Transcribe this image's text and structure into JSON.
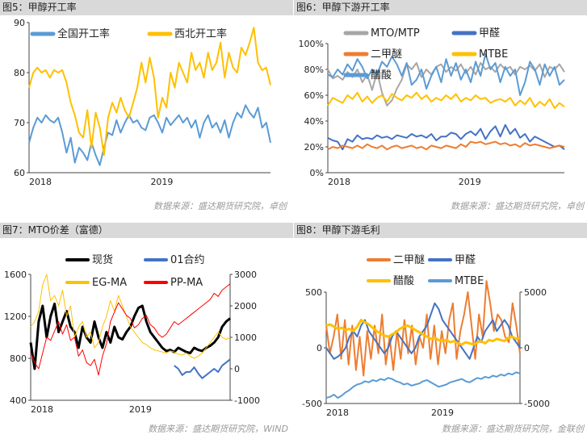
{
  "chart_data": [
    {
      "type": "line",
      "title": "图5：甲醇开工率",
      "source": "数据来源：盛达期货研究院，卓创",
      "x_ticks": [
        "2018",
        "2019"
      ],
      "ylim": [
        60,
        90
      ],
      "y_ticks": [
        60,
        70,
        80,
        90
      ],
      "colors": [
        "#5b9bd5",
        "#ffc000"
      ],
      "series": [
        {
          "name": "全国开工率",
          "values": [
            66.0,
            69.0,
            71.0,
            70.0,
            71.5,
            70.5,
            70.0,
            71.0,
            68.0,
            64.0,
            67.0,
            62.0,
            65.0,
            64.0,
            62.5,
            66.0,
            63.5,
            61.5,
            65.0,
            68.0,
            67.5,
            70.5,
            68.0,
            70.0,
            71.5,
            70.0,
            70.5,
            69.0,
            68.5,
            71.0,
            71.5,
            70.0,
            68.0,
            71.0,
            69.5,
            70.5,
            71.5,
            70.0,
            71.0,
            69.0,
            70.5,
            67.0,
            70.0,
            71.5,
            69.0,
            70.0,
            68.0,
            70.5,
            67.0,
            70.0,
            72.0,
            71.0,
            73.5,
            72.0,
            71.0,
            73.0,
            69.0,
            70.0,
            66.0
          ]
        },
        {
          "name": "西北开工率",
          "values": [
            77.0,
            80.0,
            81.0,
            80.0,
            80.5,
            79.0,
            80.5,
            80.0,
            80.5,
            78.0,
            74.0,
            71.5,
            68.0,
            67.0,
            72.5,
            65.0,
            72.0,
            69.0,
            63.5,
            71.0,
            74.0,
            72.0,
            75.0,
            72.5,
            71.0,
            74.0,
            77.0,
            82.0,
            78.0,
            83.0,
            79.0,
            71.0,
            75.0,
            73.0,
            80.0,
            77.0,
            82.0,
            80.0,
            78.0,
            84.0,
            80.5,
            82.0,
            79.0,
            84.0,
            80.5,
            82.0,
            86.0,
            79.0,
            84.0,
            81.0,
            80.0,
            85.0,
            83.5,
            86.0,
            89.0,
            82.0,
            80.5,
            81.0,
            77.5
          ]
        }
      ]
    },
    {
      "type": "line",
      "title": "图6：甲醇下游开工率",
      "source": "数据来源：盛达期货研究院，卓创",
      "x_ticks": [
        "2018",
        "2019"
      ],
      "ylim": [
        0,
        100
      ],
      "y_ticks": [
        "0%",
        "20%",
        "40%",
        "60%",
        "80%",
        "100%"
      ],
      "colors": [
        "#a6a6a6",
        "#4472c4",
        "#ed7d31",
        "#ffc000",
        "#5b9bd5"
      ],
      "series": [
        {
          "name": "MTO/MTP",
          "values": [
            80,
            73,
            75,
            72,
            78,
            74,
            80,
            70,
            76,
            64,
            78,
            62,
            52,
            56,
            65,
            72,
            84,
            80,
            85,
            74,
            80,
            76,
            82,
            84,
            78,
            82,
            79,
            84,
            77,
            82,
            76,
            85,
            80,
            82,
            78,
            84,
            80,
            82,
            76,
            82,
            80,
            83,
            79,
            84,
            74,
            82,
            80,
            84,
            78
          ]
        },
        {
          "name": "甲醛",
          "values": [
            27,
            25,
            24,
            18,
            26,
            24,
            29,
            26,
            27,
            26,
            29,
            27,
            28,
            26,
            29,
            28,
            27,
            30,
            28,
            29,
            27,
            30,
            25,
            28,
            28,
            31,
            30,
            26,
            30,
            32,
            29,
            34,
            26,
            32,
            36,
            28,
            37,
            30,
            34,
            27,
            30,
            24,
            28,
            26,
            24,
            22,
            20,
            21,
            18
          ]
        },
        {
          "name": "二甲醚",
          "values": [
            18,
            20,
            19,
            21,
            20,
            19,
            21,
            19,
            22,
            20,
            19,
            21,
            18,
            20,
            21,
            19,
            20,
            21,
            19,
            20,
            18,
            21,
            20,
            19,
            21,
            20,
            19,
            22,
            20,
            24,
            23,
            24,
            22,
            23,
            24,
            22,
            23,
            21,
            22,
            20,
            23,
            21,
            22,
            21,
            20,
            19,
            20,
            21,
            20
          ]
        },
        {
          "name": "MTBE",
          "values": [
            52,
            58,
            56,
            54,
            60,
            57,
            62,
            55,
            59,
            54,
            58,
            60,
            55,
            61,
            58,
            56,
            60,
            58,
            62,
            57,
            60,
            55,
            58,
            56,
            60,
            57,
            61,
            55,
            58,
            56,
            60,
            57,
            58,
            54,
            56,
            57,
            55,
            58,
            52,
            56,
            53,
            58,
            51,
            55,
            52,
            57,
            50,
            54,
            51
          ]
        },
        {
          "name": "醋酸",
          "values": [
            76,
            74,
            80,
            76,
            84,
            79,
            88,
            82,
            73,
            80,
            76,
            86,
            82,
            90,
            84,
            75,
            85,
            68,
            72,
            80,
            65,
            75,
            82,
            70,
            88,
            75,
            85,
            72,
            80,
            70,
            86,
            75,
            92,
            80,
            85,
            70,
            82,
            75,
            80,
            60,
            70,
            86,
            80,
            68,
            84,
            75,
            82,
            68,
            72
          ]
        }
      ]
    },
    {
      "type": "line",
      "title": "图7：MTO价差（富德）",
      "source": "数据来源：盛达期货研究院，WIND",
      "x_ticks": [
        "2018",
        "2019"
      ],
      "ylim_left": [
        400,
        1600
      ],
      "ylim_right": [
        -1000,
        3000
      ],
      "y_ticks_left": [
        400,
        800,
        1200,
        1600
      ],
      "y_ticks_right": [
        -1000,
        0,
        1000,
        2000,
        3000
      ],
      "colors": [
        "#000000",
        "#4472c4",
        "#ffc000",
        "#ff0000"
      ],
      "series": [
        {
          "name": "现货",
          "axis": "left",
          "values": [
            950,
            700,
            1150,
            1300,
            1000,
            1200,
            1320,
            1050,
            1150,
            1250,
            1100,
            1050,
            900,
            1100,
            1000,
            950,
            1150,
            1000,
            900,
            1050,
            950,
            1100,
            1000,
            980,
            1050,
            1100,
            1200,
            1280,
            1300,
            1150,
            1050,
            1000,
            950,
            900,
            870,
            880,
            860,
            900,
            880,
            860,
            850,
            900,
            880,
            870,
            900,
            920,
            950,
            1000,
            1100,
            1150,
            1180
          ]
        },
        {
          "name": "01合约",
          "axis": "right",
          "values": [
            null,
            null,
            null,
            null,
            null,
            null,
            null,
            null,
            null,
            null,
            null,
            null,
            null,
            null,
            null,
            null,
            null,
            null,
            null,
            null,
            null,
            null,
            null,
            null,
            null,
            null,
            null,
            null,
            null,
            null,
            null,
            null,
            null,
            null,
            null,
            null,
            100,
            0,
            -200,
            -100,
            -100,
            50,
            -150,
            -300,
            -200,
            -100,
            0,
            -100,
            100,
            200,
            300
          ]
        },
        {
          "name": "EG-MA",
          "axis": "left",
          "values": [
            1100,
            1150,
            1250,
            1500,
            1600,
            1350,
            1400,
            1300,
            1450,
            1200,
            1300,
            1000,
            1100,
            1150,
            1000,
            1050,
            900,
            950,
            1100,
            1200,
            1350,
            1250,
            1400,
            1300,
            1200,
            1100,
            1050,
            1000,
            950,
            930,
            900,
            880,
            870,
            860,
            850,
            870,
            860,
            840,
            830,
            850,
            820,
            800,
            820,
            850,
            900,
            950,
            1000,
            1050,
            1000,
            980,
            1000
          ]
        },
        {
          "name": "PP-MA",
          "axis": "right",
          "values": [
            500,
            200,
            0,
            500,
            1000,
            900,
            1200,
            1500,
            1100,
            1400,
            900,
            1000,
            400,
            600,
            200,
            100,
            300,
            -200,
            400,
            800,
            1500,
            1800,
            2100,
            1900,
            1700,
            1600,
            1300,
            1400,
            1600,
            1700,
            1400,
            1300,
            1100,
            1000,
            1100,
            1300,
            1500,
            1400,
            1500,
            1600,
            1700,
            1800,
            1900,
            2000,
            2100,
            2200,
            2400,
            2300,
            2500,
            2600,
            2700
          ]
        }
      ]
    },
    {
      "type": "line",
      "title": "图8：甲醇下游毛利",
      "source": "数据来源：盛达期货研究院，金联创",
      "x_ticks": [
        "2018",
        "2019"
      ],
      "ylim_left": [
        -500,
        500
      ],
      "ylim_right": [
        -5000,
        5000
      ],
      "y_ticks_left": [
        -500,
        0,
        500
      ],
      "y_ticks_right": [
        -5000,
        0,
        5000
      ],
      "colors": [
        "#ed7d31",
        "#4472c4",
        "#ffc000",
        "#5b9bd5"
      ],
      "series": [
        {
          "name": "二甲醚",
          "axis": "left",
          "values": [
            200,
            -50,
            100,
            300,
            -100,
            250,
            -150,
            200,
            -200,
            100,
            -250,
            150,
            -100,
            200,
            -50,
            300,
            -150,
            100,
            -200,
            150,
            -100,
            250,
            -50,
            200,
            -150,
            100,
            0,
            300,
            -100,
            200,
            -150,
            150,
            -50,
            250,
            400,
            -100,
            150,
            300,
            500,
            200,
            -100,
            300,
            100,
            600,
            400,
            150,
            300,
            250,
            100,
            50,
            400,
            200,
            -50
          ]
        },
        {
          "name": "甲醛",
          "axis": "left",
          "values": [
            0,
            -50,
            -100,
            -80,
            -50,
            0,
            100,
            150,
            100,
            200,
            250,
            150,
            100,
            50,
            0,
            -50,
            0,
            100,
            150,
            100,
            50,
            0,
            -50,
            0,
            100,
            150,
            200,
            300,
            400,
            350,
            250,
            200,
            150,
            100,
            50,
            0,
            -50,
            -100,
            0,
            100,
            50,
            150,
            200,
            250,
            150,
            200,
            250,
            200,
            100,
            50,
            0
          ]
        },
        {
          "name": "醋酸",
          "axis": "right",
          "values": [
            2000,
            2100,
            1900,
            1700,
            1800,
            1600,
            1700,
            1500,
            1900,
            2500,
            2300,
            2100,
            1800,
            1500,
            1300,
            1100,
            1000,
            1200,
            1400,
            1700,
            1900,
            2000,
            1800,
            1600,
            1400,
            1200,
            1000,
            800,
            900,
            700,
            600,
            700,
            500,
            600,
            400,
            300,
            500,
            400,
            300,
            500,
            600,
            400,
            700,
            600,
            800,
            700,
            600,
            900,
            1000,
            800,
            900
          ]
        },
        {
          "name": "MTBE",
          "axis": "right",
          "values": [
            -4500,
            -4400,
            -4200,
            -4500,
            -4300,
            -4000,
            -3800,
            -3500,
            -3300,
            -3200,
            -3000,
            -3100,
            -2900,
            -3000,
            -2800,
            -2900,
            -2700,
            -2800,
            -3000,
            -3100,
            -3300,
            -3200,
            -3400,
            -3300,
            -3200,
            -3000,
            -2900,
            -3100,
            -3300,
            -3500,
            -3400,
            -3300,
            -3100,
            -3000,
            -2900,
            -2800,
            -3000,
            -3100,
            -2900,
            -2700,
            -2800,
            -2600,
            -2700,
            -2500,
            -2600,
            -2400,
            -2500,
            -2300,
            -2400,
            -2200,
            -2300
          ]
        }
      ]
    }
  ]
}
